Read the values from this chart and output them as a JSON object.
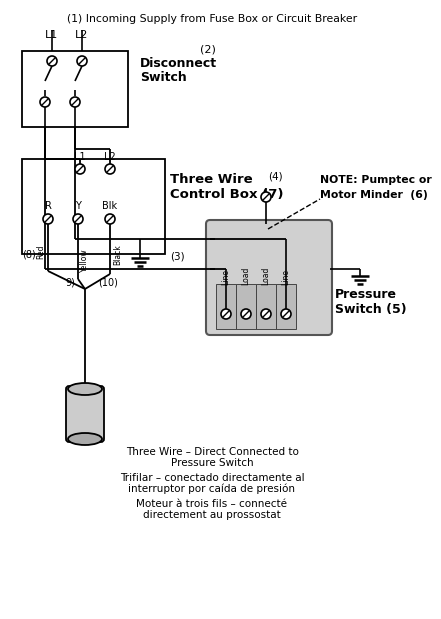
{
  "bg_color": "#ffffff",
  "line_color": "#000000",
  "text_color": "#000000",
  "fig_width": 4.05,
  "fig_height": 6.0,
  "title": "(1) Incoming Supply from Fuse Box or Circuit Breaker",
  "L1_top": "L1",
  "L2_top": "L2",
  "disconnect_label": "Disconnect",
  "switch_label": "Switch",
  "num2": "(2)",
  "num3": "(3)",
  "num4": "(4)",
  "pressure_label1": "Pressure",
  "pressure_label2": "Switch (5)",
  "note_line1": "NOTE: Pumptec or",
  "note_line2": "Motor Minder  (6)",
  "L1_box": "L1",
  "L2_box": "L2",
  "R_label": "R",
  "Y_label": "Y",
  "Blk_label": "Blk",
  "three_wire_line1": "Three Wire",
  "three_wire_line2": "Control Box (7)",
  "num8": "(8)",
  "num9": "9)",
  "num10": "(10)",
  "red_label": "Red",
  "yellow_label": "Yellow",
  "black_label": "Black",
  "ps_labels": [
    "Line",
    "Load",
    "Load",
    "Line"
  ],
  "bottom1": "Three Wire – Direct Connected to",
  "bottom1b": "Pressure Switch",
  "bottom2": "Trifilar – conectado directamente al",
  "bottom2b": "interruptor por caída de presión",
  "bottom3": "Moteur à trois fils – connecté",
  "bottom3b": "directement au prossostat"
}
